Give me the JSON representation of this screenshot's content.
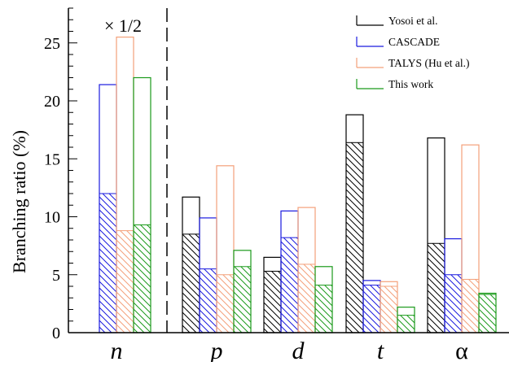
{
  "chart_data": {
    "type": "bar",
    "ylabel": "Branching ratio (%)",
    "xlabel": "",
    "ylim": [
      0,
      28
    ],
    "yticks": [
      0,
      5,
      10,
      15,
      20,
      25
    ],
    "categories": [
      "n",
      "p",
      "d",
      "t",
      "α"
    ],
    "annotation": "× 1/2",
    "legend_position": "top-right",
    "series": [
      {
        "name": "Yosoi et al.",
        "color": "#000000",
        "values": [
          null,
          11.7,
          6.5,
          18.8,
          16.8
        ],
        "hatched_values": [
          null,
          8.5,
          5.3,
          16.4,
          7.7
        ]
      },
      {
        "name": "CASCADE",
        "color": "#1a1adf",
        "values": [
          21.4,
          9.9,
          10.5,
          4.5,
          8.1
        ],
        "hatched_values": [
          12.0,
          5.5,
          8.2,
          4.1,
          5.0
        ]
      },
      {
        "name": "TALYS (Hu et al.)",
        "color": "#f4a07a",
        "values": [
          25.5,
          14.4,
          10.8,
          4.4,
          16.2
        ],
        "hatched_values": [
          8.8,
          5.0,
          5.9,
          4.0,
          4.6
        ]
      },
      {
        "name": "This work",
        "color": "#1a9a1a",
        "values": [
          22.0,
          7.1,
          5.7,
          2.2,
          3.4
        ],
        "hatched_values": [
          9.3,
          5.7,
          4.1,
          1.5,
          3.3
        ]
      }
    ]
  }
}
